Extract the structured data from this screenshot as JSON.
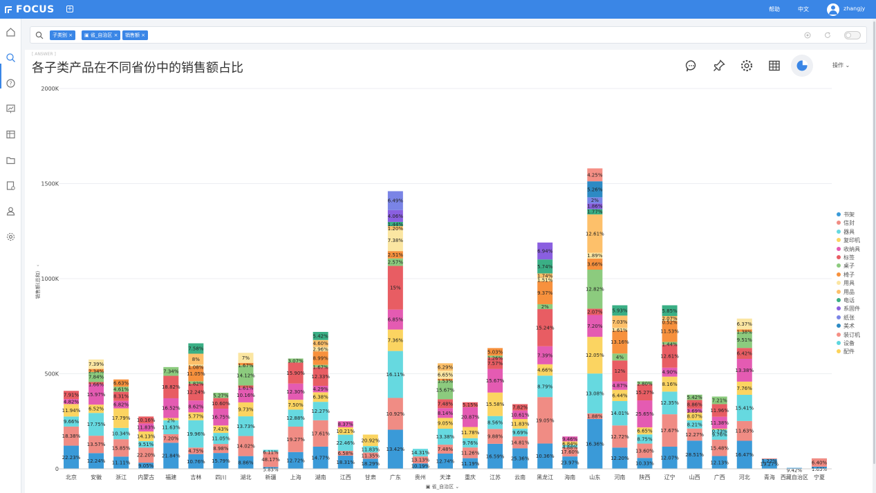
{
  "app": {
    "logo_text": "FOCUS",
    "help": "帮助",
    "lang": "中文",
    "user": "zhangjy"
  },
  "search": {
    "chips": [
      "子类别",
      "省_自治区",
      "销售额"
    ]
  },
  "answer_tag": "[ ANSWER ]",
  "title": "各子类产品在不同省份中的销售额占比",
  "ops_label": "操作",
  "colors": {
    "brand": "#3a86e6"
  },
  "chart_data": {
    "type": "bar",
    "stacked": true,
    "xlabel": "省_自治区",
    "ylabel": "销售额(总和)",
    "ylim": [
      0,
      2000000
    ],
    "yticks": [
      "0",
      "500K",
      "1000K",
      "1500K",
      "2000K"
    ],
    "grid": true,
    "legend_position": "right",
    "series_names": [
      "书架",
      "信封",
      "器具",
      "复印机",
      "收纳具",
      "标签",
      "桌子",
      "椅子",
      "用具",
      "用品",
      "电话",
      "系固件",
      "纸张",
      "美术",
      "装订机",
      "设备",
      "配件"
    ],
    "series_colors": [
      "#3a9ad8",
      "#f08c84",
      "#66d9e0",
      "#fbd461",
      "#e45bb2",
      "#e85d63",
      "#8ccb7e",
      "#f7913d",
      "#fbe6a2",
      "#fdc06a",
      "#3aaf85",
      "#8a5fe0",
      "#7a84e6",
      "#2d8ac4",
      "#f58f85",
      "#5ed6de",
      "#fcd35a"
    ],
    "categories": [
      {
        "name": "北京",
        "total": 410000,
        "labels": [
          "22.23%",
          "18.38%",
          "9.66%",
          "11.94%",
          "4.82%",
          "7.91%"
        ]
      },
      {
        "name": "安徽",
        "total": 575000,
        "labels": [
          "12.24%",
          "13.57%",
          "17.75%",
          "6.52%",
          "15.97%",
          "1.66%",
          "7.84%",
          "2.34%",
          "7.39%"
        ]
      },
      {
        "name": "浙江",
        "total": 470000,
        "labels": [
          "11.11%",
          "15.85%",
          "10.34%",
          "17.79%",
          "6.82%",
          "8.31%",
          "4.61%",
          "6.63%"
        ]
      },
      {
        "name": "内蒙古",
        "total": 275000,
        "labels": [
          "9.05%",
          "22.20%",
          "9.51%",
          "14.13%",
          "11.83%",
          "10.16%"
        ]
      },
      {
        "name": "福建",
        "total": 535000,
        "labels": [
          "21.84%",
          "7.20%",
          "11.63%",
          "2%",
          "16.52%",
          "18.82%",
          "7.34%"
        ]
      },
      {
        "name": "吉林",
        "total": 660000,
        "labels": [
          "10.76%",
          "4.75%",
          "19.96%",
          "5.77%",
          "8.62%",
          "12.24%",
          "1.82%",
          "11.05%",
          "1.08%",
          "8%",
          "7.58%"
        ]
      },
      {
        "name": "四川",
        "total": 400000,
        "labels": [
          "15.79%",
          "8.98%",
          "11.05%",
          "7.43%",
          "16.75%",
          "10.60%",
          "5.27%"
        ]
      },
      {
        "name": "湖北",
        "total": 610000,
        "labels": [
          "8.86%",
          "14.02%",
          "13.73%",
          "9.73%",
          "10.16%",
          "1.61%",
          "14.12%",
          "1.67%",
          "7%"
        ]
      },
      {
        "name": "新疆",
        "total": 100000,
        "labels": [
          "5.83%",
          "48.17%",
          "6.11%"
        ]
      },
      {
        "name": "上海",
        "total": 580000,
        "labels": [
          "12.72%",
          "19.27%",
          "12.88%",
          "7.50%",
          "12.30%",
          "15.90%",
          "3.07%"
        ]
      },
      {
        "name": "湖南",
        "total": 720000,
        "labels": [
          "14.77%",
          "17.61%",
          "12.27%",
          "6.38%",
          "4.29%",
          "12.33%",
          "1.67%",
          "8.99%",
          "2.96%",
          "4.60%",
          "5.42%"
        ]
      },
      {
        "name": "江西",
        "total": 250000,
        "labels": [
          "18.31%",
          "6.58%",
          "22.46%",
          "10.21%",
          "8.37%"
        ]
      },
      {
        "name": "甘肃",
        "total": 180000,
        "labels": [
          "18.29%",
          "11.35%",
          "11.83%",
          "20.92%"
        ]
      },
      {
        "name": "广东",
        "total": 1460000,
        "labels": [
          "13.42%",
          "10.92%",
          "16.11%",
          "7.36%",
          "6.85%",
          "15%",
          "2.57%",
          "2.51%",
          "7.38%",
          "1.20%",
          "1.44%",
          "4.06%",
          "6.49%"
        ]
      },
      {
        "name": "贵州",
        "total": 105000,
        "labels": [
          "10.19%",
          "13.13%",
          "14.31%"
        ]
      },
      {
        "name": "天津",
        "total": 555000,
        "labels": [
          "12.74%",
          "7.48%",
          "13.38%",
          "9.05%",
          "8.14%",
          "7.48%",
          "15.67%",
          "1.53%",
          "6.65%",
          "6.29%"
        ]
      },
      {
        "name": "重庆",
        "total": 350000,
        "labels": [
          "11.19%",
          "11.26%",
          "9.76%",
          "11.78%",
          "20.87%",
          "5.15%"
        ]
      },
      {
        "name": "江苏",
        "total": 635000,
        "labels": [
          "16.59%",
          "9.88%",
          "8.56%",
          "15.58%",
          "15.67%",
          "7.57%",
          "1.26%",
          "5.03%"
        ]
      },
      {
        "name": "云南",
        "total": 340000,
        "labels": [
          "25.36%",
          "14.81%",
          "9.69%",
          "11.83%",
          "10.61%",
          "7.82%"
        ]
      },
      {
        "name": "黑龙江",
        "total": 1190000,
        "labels": [
          "10.36%",
          "19.05%",
          "8.79%",
          "4.66%",
          "7.39%",
          "15.24%",
          "2%",
          "9.37%",
          "1.51%",
          "1.74%",
          "5.74%",
          "6.94%"
        ]
      },
      {
        "name": "海南",
        "total": 170000,
        "labels": [
          "23.97%",
          "17.60%",
          "4.88%",
          "6.84%",
          "9.46%"
        ]
      },
      {
        "name": "山东",
        "total": 1580000,
        "labels": [
          "16.36%",
          "1.88%",
          "13.08%",
          "12.05%",
          "7.20%",
          "2.07%",
          "12.82%",
          "3.66%",
          "1.89%",
          "12.61%",
          "1.77%",
          "1.86%",
          "2%",
          "5.26%",
          "4.25%"
        ]
      },
      {
        "name": "河南",
        "total": 860000,
        "labels": [
          "12.20%",
          "12.72%",
          "14.01%",
          "6.44%",
          "4.87%",
          "12%",
          "4%",
          "13.16%",
          "1.61%",
          "7.03%",
          "5.93%"
        ]
      },
      {
        "name": "陕西",
        "total": 460000,
        "labels": [
          "10.33%",
          "13.60%",
          "8.75%",
          "6.65%",
          "25.65%",
          "15.27%",
          "2.80%"
        ]
      },
      {
        "name": "辽宁",
        "total": 860000,
        "labels": [
          "12.07%",
          "17.67%",
          "12.35%",
          "8.16%",
          "4.90%",
          "12.61%",
          "1.44%",
          "11.53%",
          "0.52%",
          "2.07%",
          "5.85%"
        ]
      },
      {
        "name": "山西",
        "total": 390000,
        "labels": [
          "28.51%",
          "12.27%",
          "8.21%",
          "8.07%",
          "3.69%",
          "8.86%",
          "5.42%"
        ]
      },
      {
        "name": "广西",
        "total": 380000,
        "labels": [
          "12.13%",
          "15.48%",
          "9.76%",
          "0.73%",
          "11.38%",
          "11.96%",
          "7.21%"
        ]
      },
      {
        "name": "河北",
        "total": 790000,
        "labels": [
          "16.47%",
          "11.63%",
          "15.41%",
          "7.76%",
          "13.38%",
          "6.42%",
          "9.51%",
          "1.38%",
          "6.37%"
        ]
      },
      {
        "name": "青海",
        "total": 55000,
        "labels": [
          "19.27%",
          "1.22%"
        ]
      },
      {
        "name": "西藏自治区",
        "total": 5000,
        "labels": [
          "9.42%"
        ]
      },
      {
        "name": "宁夏",
        "total": 55000,
        "labels": [
          "1.63%",
          "6.40%"
        ]
      }
    ]
  }
}
